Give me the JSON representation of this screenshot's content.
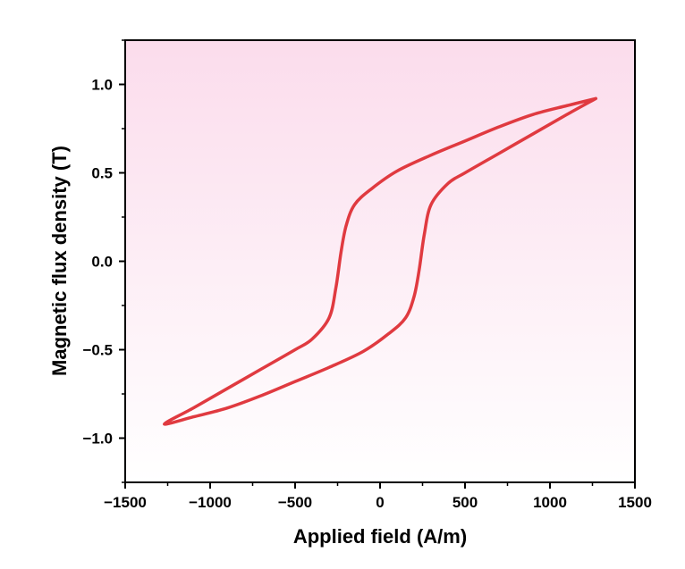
{
  "chart_data": {
    "type": "line",
    "title": "",
    "xlabel": "Applied field (A/m)",
    "ylabel": "Magnetic flux density (T)",
    "xlim": [
      -1500,
      1500
    ],
    "ylim": [
      -1.25,
      1.25
    ],
    "x_ticks": [
      -1500,
      -1000,
      -500,
      0,
      500,
      1000,
      1500
    ],
    "x_tick_labels": [
      "−1500",
      "−1000",
      "−500",
      "0",
      "500",
      "1000",
      "1500"
    ],
    "y_ticks": [
      -1.0,
      -0.5,
      0.0,
      0.5,
      1.0
    ],
    "y_tick_labels": [
      "−1.0",
      "−0.5",
      "0.0",
      "0.5",
      "1.0"
    ],
    "grid": false,
    "legend": "none",
    "background_gradient": [
      "#fbdcec",
      "#ffffff"
    ],
    "series": [
      {
        "color": "#e03a40",
        "x": [
          1270,
          1100,
          900,
          700,
          500,
          300,
          100,
          -50,
          -150,
          -200,
          -230,
          -260,
          -300,
          -400,
          -500,
          -700,
          -900,
          -1100,
          -1270,
          -1100,
          -900,
          -700,
          -500,
          -300,
          -100,
          50,
          150,
          200,
          230,
          260,
          300,
          400,
          500,
          700,
          900,
          1100,
          1270
        ],
        "y": [
          0.92,
          0.88,
          0.83,
          0.76,
          0.68,
          0.6,
          0.51,
          0.41,
          0.32,
          0.2,
          0.05,
          -0.15,
          -0.32,
          -0.44,
          -0.5,
          -0.61,
          -0.72,
          -0.83,
          -0.92,
          -0.88,
          -0.83,
          -0.76,
          -0.68,
          -0.6,
          -0.51,
          -0.41,
          -0.32,
          -0.2,
          -0.05,
          0.15,
          0.32,
          0.44,
          0.5,
          0.61,
          0.72,
          0.83,
          0.92
        ]
      }
    ]
  }
}
